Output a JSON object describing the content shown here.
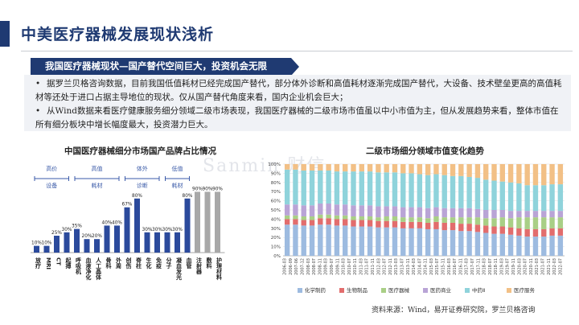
{
  "page": {
    "title": "中美医疗器械发展现状浅析",
    "banner": "我国医疗器械现状—国产替代空间巨大，投资机会无限",
    "bullets": [
      "据罗兰贝格咨询数据，目前我国低值耗材已经完成国产替代，部分体外诊断和高值耗材逐渐完成国产替代，大设备、技术壁垒更高的高值耗材等还处于进口占据主导地位的现状。仅从国产替代角度来看，国内企业机会巨大；",
      "从Wind数据来看医疗健康服务细分领域二级市场表现，我国医疗器械的二级市场市值虽以中小市值为主，但从发展趋势来看，整体市值在所有细分板块中增长幅度最大，投资潜力巨大。"
    ],
    "source": "资料来源：Wind，易开证券研究院，罗兰贝格咨询",
    "watermark": "Sanmin 财信"
  },
  "colors": {
    "navy": "#1f3a72",
    "bar_blue": "#2b4a9c",
    "bar_grey": "#a8a8a8",
    "bracket": "#3a5aa8"
  },
  "chart_data": [
    {
      "type": "bar",
      "title": "中国医疗器械细分市场国产品牌占比情况",
      "groups": [
        {
          "label": "高价设备",
          "range": [
            0,
            3
          ]
        },
        {
          "label": "高值耗材",
          "range": [
            4,
            8
          ]
        },
        {
          "label": "体外诊断",
          "range": [
            9,
            12
          ]
        },
        {
          "label": "低值耗材",
          "range": [
            13,
            15
          ]
        }
      ],
      "categories": [
        "放疗",
        "MRI",
        "CT",
        "起搏",
        "呼吸机",
        "血液净化",
        "人工晶体",
        "骨科",
        "外周",
        "创伤",
        "脊柱",
        "生化",
        "免疫",
        "分子",
        "凝血发光",
        "血管",
        "注射器",
        "敷料",
        "护理材料"
      ],
      "values": [
        10,
        10,
        25,
        30,
        35,
        20,
        20,
        40,
        40,
        67,
        80,
        30,
        30,
        30,
        30,
        80,
        90,
        90,
        90
      ],
      "value_labels": [
        "10%",
        "10%",
        "25%",
        "30%",
        "35%",
        "20%",
        "20%",
        "40%",
        "40%",
        "67%",
        "80%",
        "30%",
        "30%",
        "30%",
        "30%",
        "80%",
        "90%",
        "90%",
        "90%"
      ],
      "bar_styles": [
        "blue",
        "blue",
        "blue",
        "blue",
        "blue",
        "blue",
        "blue",
        "blue",
        "blue",
        "blue",
        "blue",
        "blue",
        "blue",
        "blue",
        "blue",
        "blue",
        "grey",
        "grey",
        "grey"
      ],
      "ylim": [
        0,
        100
      ]
    },
    {
      "type": "bar",
      "stacked": "percent",
      "title": "二级市场细分领域市值变化趋势",
      "ylim": [
        0,
        100
      ],
      "yticks": [
        "0%",
        "10%",
        "20%",
        "30%",
        "40%",
        "50%",
        "60%",
        "70%",
        "80%",
        "90%",
        "100%"
      ],
      "x": [
        "2006-03",
        "2006-09",
        "2007-03",
        "2007-09",
        "2008-03",
        "2008-09",
        "2009-03",
        "2009-09",
        "2010-03",
        "2010-09",
        "2011-03",
        "2011-09",
        "2012-03",
        "2012-09",
        "2013-03",
        "2013-09",
        "2014-03",
        "2014-09",
        "2015-03",
        "2015-09",
        "2016-03",
        "2016-09",
        "2017-03",
        "2017-09",
        "2018-03",
        "2018-09",
        "2019-03",
        "2019-09",
        "2020-03",
        "2020-09",
        "2021-03",
        "2021-09",
        "2022-03",
        "2022-09"
      ],
      "xticks": [
        "2006-03",
        "2006-09",
        "2007-06",
        "2007-12",
        "2008-03",
        "2008-07",
        "2008-11",
        "2009-03",
        "2009-07",
        "2009-11",
        "2010-03",
        "2010-07",
        "2010-11",
        "2011-03",
        "2011-07",
        "2011-11",
        "2012-03",
        "2012-07",
        "2012-11",
        "2013-03",
        "2013-07",
        "2013-11",
        "2014-03",
        "2014-07",
        "2014-11",
        "2015-03",
        "2015-07",
        "2015-11",
        "2016-03",
        "2016-07",
        "2016-11",
        "2017-03",
        "2017-07",
        "2017-11",
        "2018-03",
        "2018-07",
        "2018-11",
        "2019-03",
        "2019-07",
        "2019-11",
        "2020-03",
        "2020-07",
        "2020-11",
        "2021-03",
        "2021-07",
        "2021-11",
        "2022-03",
        "2022-07"
      ],
      "series": [
        {
          "name": "化学制药",
          "color": "#9dbbe0",
          "values": [
            34,
            34,
            33,
            33,
            34,
            34,
            33,
            33,
            32,
            32,
            32,
            31,
            31,
            31,
            30,
            30,
            30,
            29,
            29,
            28,
            28,
            27,
            27,
            26,
            25,
            24,
            24,
            23,
            22,
            21,
            21,
            21,
            22,
            22
          ]
        },
        {
          "name": "生物制品",
          "color": "#e26d6d",
          "values": [
            6,
            6,
            6,
            6,
            7,
            7,
            7,
            7,
            7,
            7,
            7,
            7,
            7,
            7,
            7,
            7,
            7,
            7,
            8,
            8,
            8,
            8,
            8,
            8,
            8,
            8,
            8,
            8,
            8,
            8,
            8,
            8,
            8,
            8
          ]
        },
        {
          "name": "医疗器械",
          "color": "#a9cf86",
          "values": [
            4,
            4,
            4,
            4,
            4,
            4,
            4,
            4,
            4,
            4,
            4,
            4,
            5,
            5,
            5,
            5,
            5,
            5,
            6,
            6,
            6,
            7,
            7,
            8,
            8,
            9,
            10,
            10,
            12,
            13,
            13,
            13,
            12,
            12
          ]
        },
        {
          "name": "医药商业",
          "color": "#b9a4d6",
          "values": [
            12,
            12,
            12,
            12,
            12,
            12,
            12,
            12,
            12,
            12,
            12,
            12,
            11,
            11,
            11,
            11,
            11,
            11,
            10,
            10,
            10,
            10,
            10,
            9,
            9,
            9,
            8,
            8,
            7,
            7,
            7,
            7,
            7,
            7
          ]
        },
        {
          "name": "中药Ⅱ",
          "color": "#8fd3db",
          "values": [
            38,
            38,
            38,
            38,
            36,
            36,
            36,
            36,
            37,
            37,
            37,
            37,
            37,
            37,
            37,
            37,
            36,
            36,
            36,
            36,
            35,
            35,
            34,
            34,
            33,
            32,
            31,
            31,
            30,
            28,
            28,
            28,
            29,
            29
          ]
        },
        {
          "name": "医疗服务",
          "color": "#f2c086",
          "values": [
            6,
            6,
            7,
            7,
            7,
            7,
            8,
            8,
            8,
            8,
            8,
            9,
            9,
            9,
            10,
            10,
            11,
            12,
            11,
            12,
            13,
            13,
            14,
            15,
            17,
            18,
            19,
            20,
            21,
            23,
            23,
            23,
            22,
            22
          ]
        }
      ]
    }
  ]
}
